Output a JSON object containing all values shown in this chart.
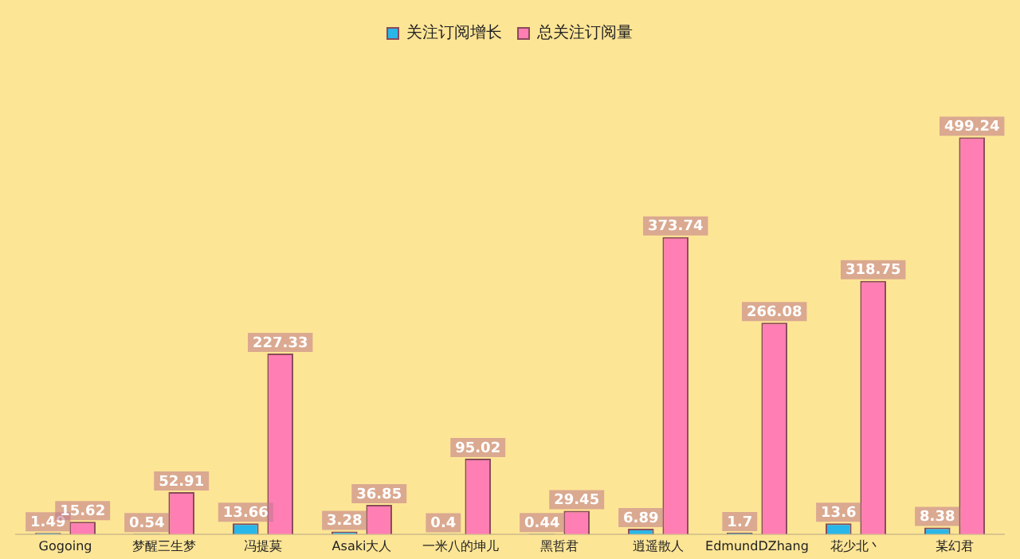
{
  "chart_data": {
    "type": "bar",
    "categories": [
      "Gogoing",
      "梦醒三生梦",
      "冯提莫",
      "Asaki大人",
      "一米八的坤儿",
      "黑哲君",
      "逍遥散人",
      "EdmundDZhang",
      "花少北丶",
      "某幻君"
    ],
    "series": [
      {
        "name": "关注订阅增长",
        "color": "#29b6e8",
        "values": [
          1.49,
          0.54,
          13.66,
          3.28,
          0.4,
          0.44,
          6.89,
          1.7,
          13.6,
          8.38
        ]
      },
      {
        "name": "总关注订阅量",
        "color": "#ff7eb3",
        "values": [
          15.62,
          52.91,
          227.33,
          36.85,
          95.02,
          29.45,
          373.74,
          266.08,
          318.75,
          499.24
        ]
      }
    ],
    "data_labels": true,
    "legend": "top",
    "grid": false
  }
}
